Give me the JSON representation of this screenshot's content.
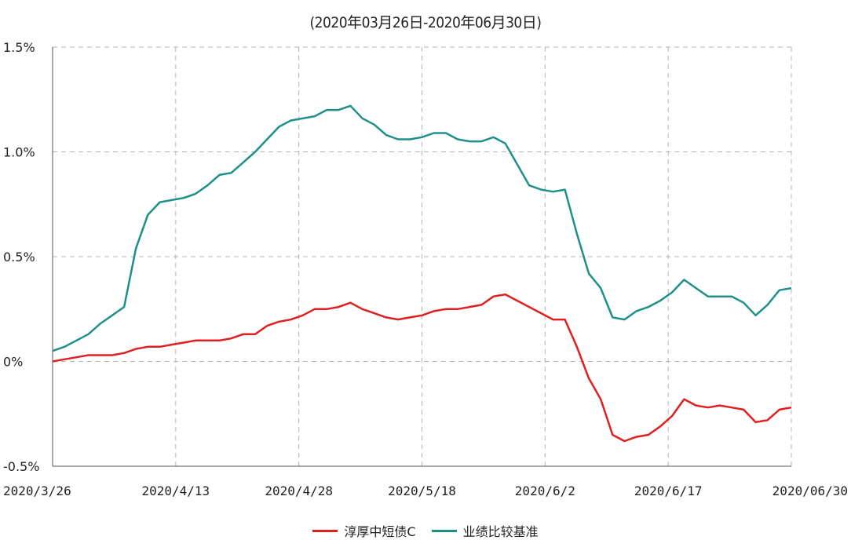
{
  "chart_data": {
    "type": "line",
    "title": "(2020年03月26日-2020年06月30日)",
    "xlabel": "",
    "ylabel": "",
    "ylim": [
      -0.5,
      1.5
    ],
    "yticks": [
      "1.5%",
      "1.0%",
      "0.5%",
      "0%",
      "-0.5%"
    ],
    "xticks": [
      "2020/3/26",
      "2020/4/13",
      "2020/4/28",
      "2020/5/18",
      "2020/6/2",
      "2020/6/17",
      "2020/06/30"
    ],
    "grid": true,
    "legend_position": "bottom",
    "series": [
      {
        "name": "淳厚中短债C",
        "color": "#e02020",
        "values": [
          0.0,
          0.01,
          0.02,
          0.03,
          0.03,
          0.03,
          0.04,
          0.06,
          0.07,
          0.07,
          0.08,
          0.09,
          0.1,
          0.1,
          0.1,
          0.11,
          0.13,
          0.13,
          0.17,
          0.19,
          0.2,
          0.22,
          0.25,
          0.25,
          0.26,
          0.28,
          0.25,
          0.23,
          0.21,
          0.2,
          0.21,
          0.22,
          0.24,
          0.25,
          0.25,
          0.26,
          0.27,
          0.31,
          0.32,
          0.29,
          0.26,
          0.23,
          0.2,
          0.2,
          0.07,
          -0.08,
          -0.18,
          -0.35,
          -0.38,
          -0.36,
          -0.35,
          -0.31,
          -0.26,
          -0.18,
          -0.21,
          -0.22,
          -0.21,
          -0.22,
          -0.23,
          -0.29,
          -0.28,
          -0.23,
          -0.22
        ]
      },
      {
        "name": "业绩比较基准",
        "color": "#1f9088",
        "values": [
          0.05,
          0.07,
          0.1,
          0.13,
          0.18,
          0.22,
          0.26,
          0.54,
          0.7,
          0.76,
          0.77,
          0.78,
          0.8,
          0.84,
          0.89,
          0.9,
          0.95,
          1.0,
          1.06,
          1.12,
          1.15,
          1.16,
          1.17,
          1.2,
          1.2,
          1.22,
          1.16,
          1.13,
          1.08,
          1.06,
          1.06,
          1.07,
          1.09,
          1.09,
          1.06,
          1.05,
          1.05,
          1.07,
          1.04,
          0.94,
          0.84,
          0.82,
          0.81,
          0.82,
          0.61,
          0.42,
          0.35,
          0.21,
          0.2,
          0.24,
          0.26,
          0.29,
          0.33,
          0.39,
          0.35,
          0.31,
          0.31,
          0.31,
          0.28,
          0.22,
          0.27,
          0.34,
          0.35
        ]
      }
    ]
  }
}
